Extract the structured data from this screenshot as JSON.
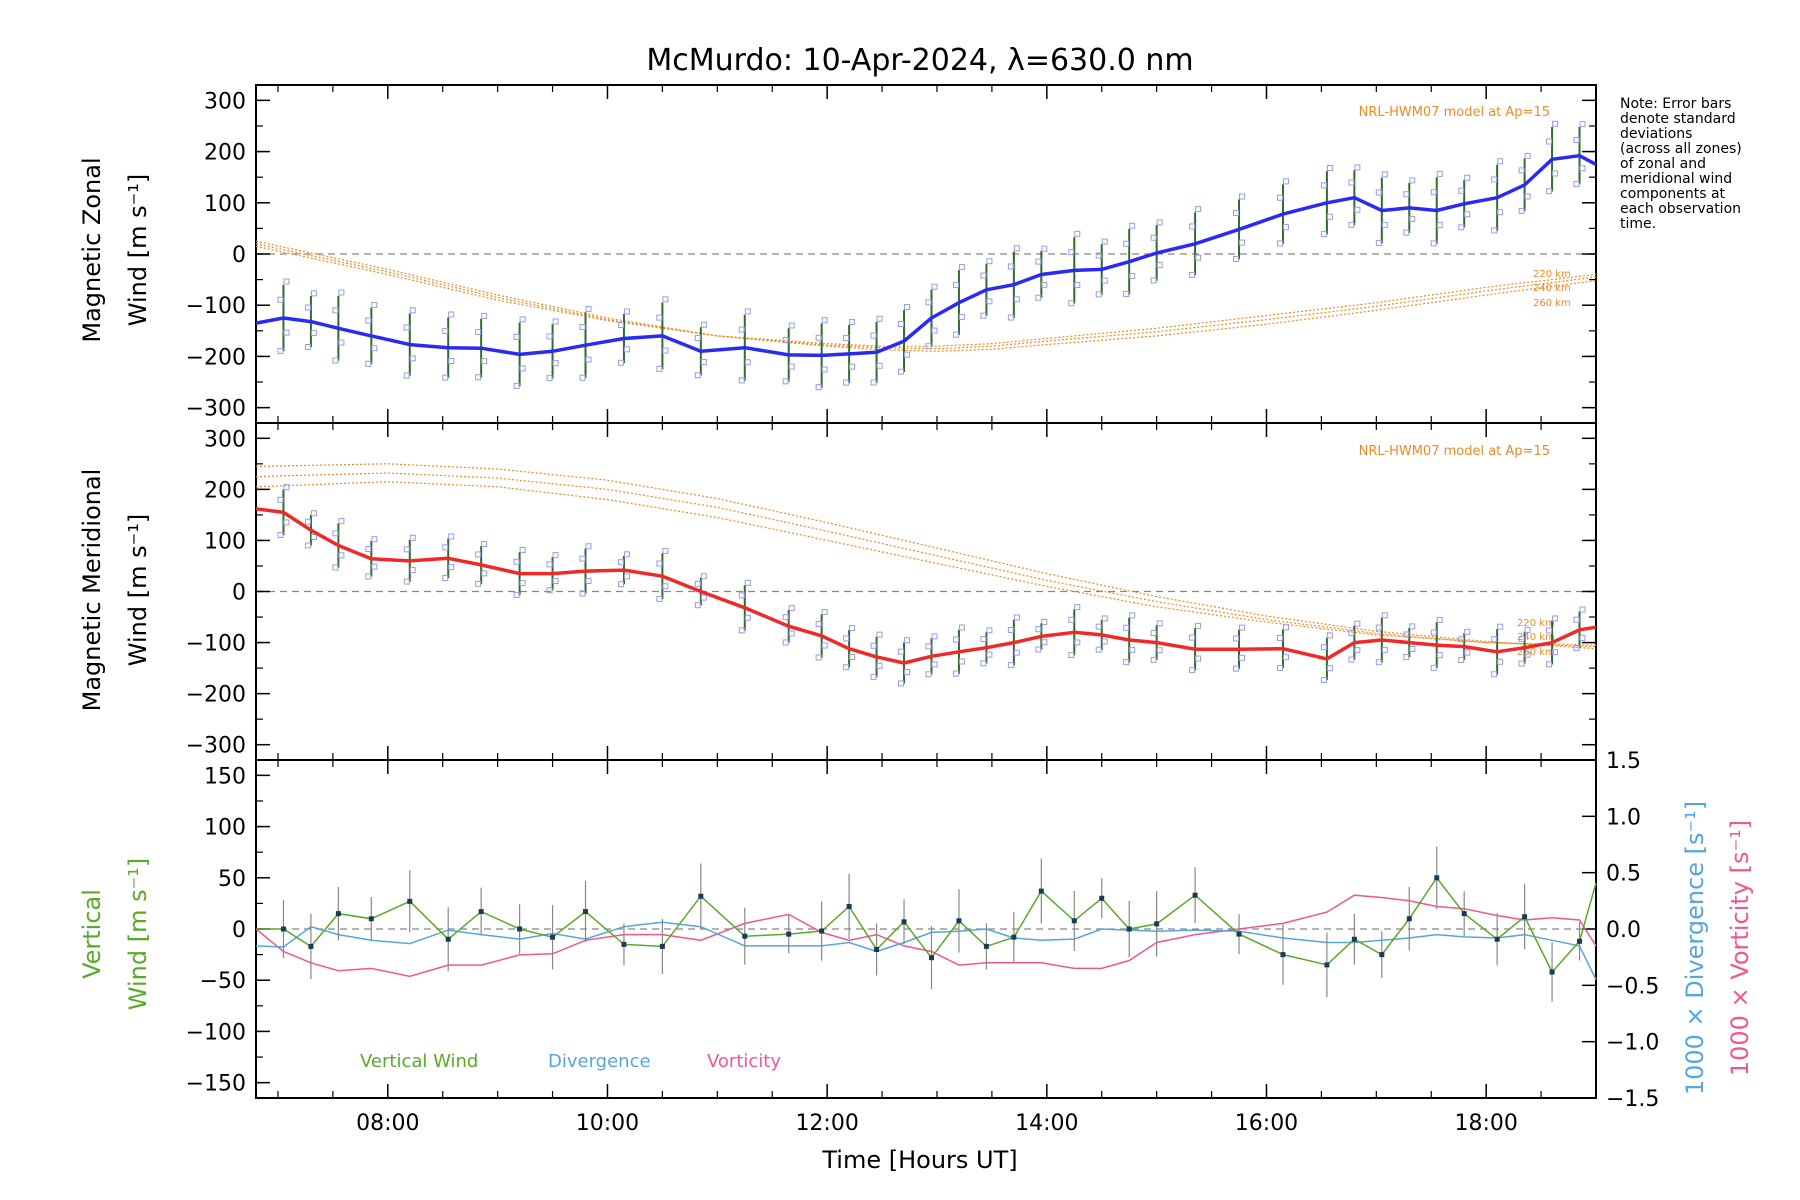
{
  "title": "McMurdo: 10-Apr-2024, λ=630.0 nm",
  "note_lines": [
    "Note: Error bars",
    "denote standard",
    "deviations",
    "(across all zones)",
    "of zonal and",
    "meridional wind",
    "components at",
    "each observation",
    "time."
  ],
  "colors": {
    "zonal": "#2a2af5",
    "meridional": "#f02828",
    "vertical": "#5aaa28",
    "divergence": "#55a6dc",
    "vorticity": "#f2578c",
    "model": "#ee8a26",
    "zone_points": "#9a9ae6"
  },
  "chart_data": [
    {
      "type": "line",
      "panel": "zonal",
      "ylabel_line1": "Magnetic Zonal",
      "ylabel_line2": "Wind [m s⁻¹]",
      "xlabel": "Time [Hours UT]",
      "x_ticks": [
        "08:00",
        "10:00",
        "12:00",
        "14:00",
        "16:00",
        "18:00"
      ],
      "y_ticks": [
        "300",
        "200",
        "100",
        "0",
        "−100",
        "−200",
        "−300"
      ],
      "xlim": [
        6.8,
        19.0
      ],
      "ylim": [
        -330,
        330
      ],
      "model_label": "NRL-HWM07 model at Ap=15",
      "altitude_labels": [
        "220 km",
        "240 km",
        "260 km"
      ],
      "series": [
        {
          "x": [
            6.8,
            7.05,
            7.3,
            7.55,
            7.85,
            8.2,
            8.55,
            8.85,
            9.2,
            9.5,
            9.8,
            10.15,
            10.5,
            10.85,
            11.25,
            11.65,
            11.95,
            12.2,
            12.45,
            12.7,
            12.95,
            13.2,
            13.45,
            13.7,
            13.95,
            14.25,
            14.5,
            14.75,
            15.0,
            15.35,
            15.75,
            16.15,
            16.55,
            16.8,
            17.05,
            17.3,
            17.55,
            17.8,
            18.1,
            18.35,
            18.6,
            18.85,
            19.0
          ],
          "y": [
            -135,
            -125,
            -132,
            -145,
            -160,
            -177,
            -183,
            -184,
            -196,
            -190,
            -178,
            -165,
            -160,
            -190,
            -183,
            -197,
            -198,
            -195,
            -192,
            -170,
            -125,
            -95,
            -70,
            -60,
            -40,
            -32,
            -30,
            -15,
            2,
            20,
            48,
            78,
            100,
            110,
            85,
            90,
            85,
            98,
            110,
            135,
            185,
            192,
            175
          ]
        }
      ],
      "model_series": [
        {
          "name": "220 km",
          "x": [
            6.8,
            8,
            9,
            10,
            11,
            12,
            12.5,
            13,
            13.5,
            14,
            15,
            16,
            17,
            18,
            19
          ],
          "y": [
            15,
            -40,
            -90,
            -130,
            -160,
            -175,
            -180,
            -180,
            -175,
            -165,
            -145,
            -120,
            -95,
            -65,
            -40
          ]
        },
        {
          "name": "240 km",
          "x": [
            6.8,
            8,
            9,
            10,
            11,
            12,
            12.5,
            13,
            13.5,
            14,
            15,
            16,
            17,
            18,
            19
          ],
          "y": [
            20,
            -35,
            -85,
            -128,
            -160,
            -178,
            -183,
            -185,
            -180,
            -170,
            -152,
            -128,
            -102,
            -72,
            -45
          ]
        },
        {
          "name": "260 km",
          "x": [
            6.8,
            8,
            9,
            10,
            11,
            12,
            12.5,
            13,
            13.5,
            14,
            15,
            16,
            17,
            18,
            19
          ],
          "y": [
            25,
            -30,
            -80,
            -125,
            -160,
            -180,
            -187,
            -190,
            -186,
            -177,
            -160,
            -137,
            -110,
            -80,
            -52
          ]
        }
      ]
    },
    {
      "type": "line",
      "panel": "meridional",
      "ylabel_line1": "Magnetic Meridional",
      "ylabel_line2": "Wind [m s⁻¹]",
      "y_ticks": [
        "300",
        "200",
        "100",
        "0",
        "−100",
        "−200",
        "−300"
      ],
      "xlim": [
        6.8,
        19.0
      ],
      "ylim": [
        -330,
        330
      ],
      "model_label": "NRL-HWM07 model at Ap=15",
      "altitude_labels": [
        "220 km",
        "240 km",
        "260 km"
      ],
      "series": [
        {
          "x": [
            6.8,
            7.05,
            7.3,
            7.55,
            7.85,
            8.2,
            8.55,
            8.85,
            9.2,
            9.5,
            9.8,
            10.15,
            10.5,
            10.85,
            11.25,
            11.65,
            11.95,
            12.2,
            12.45,
            12.7,
            12.95,
            13.2,
            13.45,
            13.7,
            13.95,
            14.25,
            14.5,
            14.75,
            15.0,
            15.35,
            15.75,
            16.15,
            16.55,
            16.8,
            17.05,
            17.3,
            17.55,
            17.8,
            18.1,
            18.35,
            18.6,
            18.85,
            19.0
          ],
          "y": [
            162,
            155,
            120,
            90,
            64,
            60,
            65,
            52,
            35,
            35,
            40,
            42,
            30,
            0,
            -32,
            -68,
            -87,
            -112,
            -128,
            -140,
            -127,
            -118,
            -110,
            -100,
            -88,
            -80,
            -85,
            -95,
            -100,
            -113,
            -113,
            -112,
            -132,
            -100,
            -95,
            -100,
            -105,
            -108,
            -118,
            -110,
            -100,
            -75,
            -70
          ]
        }
      ],
      "model_series": [
        {
          "name": "220 km",
          "x": [
            6.8,
            8,
            9,
            10,
            11,
            12,
            13,
            14,
            15,
            16,
            17,
            18,
            19
          ],
          "y": [
            205,
            215,
            205,
            180,
            145,
            100,
            55,
            10,
            -30,
            -60,
            -85,
            -100,
            -105
          ]
        },
        {
          "name": "240 km",
          "x": [
            6.8,
            8,
            9,
            10,
            11,
            12,
            13,
            14,
            15,
            16,
            17,
            18,
            19
          ],
          "y": [
            225,
            232,
            222,
            200,
            165,
            118,
            70,
            22,
            -20,
            -55,
            -82,
            -100,
            -108
          ]
        },
        {
          "name": "260 km",
          "x": [
            6.8,
            8,
            9,
            10,
            11,
            12,
            13,
            14,
            15,
            16,
            17,
            18,
            19
          ],
          "y": [
            245,
            250,
            240,
            218,
            182,
            135,
            85,
            35,
            -10,
            -48,
            -78,
            -98,
            -112
          ]
        }
      ]
    },
    {
      "type": "line",
      "panel": "vertical",
      "ylabel_line1": "Vertical",
      "ylabel_line2": "Wind [m s⁻¹]",
      "y2label_div": "1000 × Divergence [s⁻¹]",
      "y2label_vor": "1000 × Vorticity [s⁻¹]",
      "y_ticks": [
        "150",
        "100",
        "50",
        "0",
        "−50",
        "−100",
        "−150"
      ],
      "y2_ticks": [
        "1.5",
        "1.0",
        "0.5",
        "0.0",
        "−0.5",
        "−1.0",
        "−1.5"
      ],
      "xlim": [
        6.8,
        19.0
      ],
      "ylim": [
        -165,
        165
      ],
      "y2lim": [
        -1.5,
        1.5
      ],
      "legend": [
        "Vertical Wind",
        "Divergence",
        "Vorticity"
      ],
      "series": [
        {
          "name": "Vertical Wind",
          "x": [
            6.8,
            7.05,
            7.3,
            7.55,
            7.85,
            8.2,
            8.55,
            8.85,
            9.2,
            9.5,
            9.8,
            10.15,
            10.5,
            10.85,
            11.25,
            11.65,
            11.95,
            12.2,
            12.45,
            12.7,
            12.95,
            13.2,
            13.45,
            13.7,
            13.95,
            14.25,
            14.5,
            14.75,
            15.0,
            15.35,
            15.75,
            16.15,
            16.55,
            16.8,
            17.05,
            17.3,
            17.55,
            17.8,
            18.1,
            18.35,
            18.6,
            18.85,
            19.0
          ],
          "y": [
            0,
            0,
            -17,
            15,
            10,
            27,
            -10,
            17,
            0,
            -8,
            17,
            -15,
            -17,
            32,
            -7,
            -5,
            -2,
            22,
            -20,
            7,
            -28,
            8,
            -17,
            -8,
            37,
            8,
            30,
            0,
            5,
            33,
            -5,
            -25,
            -35,
            -10,
            -25,
            10,
            50,
            15,
            -10,
            12,
            -42,
            -12,
            45
          ]
        },
        {
          "name": "Divergence",
          "x": [
            6.8,
            7.05,
            7.3,
            7.55,
            7.85,
            8.2,
            8.55,
            8.85,
            9.2,
            9.5,
            9.8,
            10.15,
            10.5,
            10.85,
            11.25,
            11.65,
            11.95,
            12.2,
            12.45,
            12.7,
            12.95,
            13.2,
            13.45,
            13.7,
            13.95,
            14.25,
            14.5,
            14.75,
            15.0,
            15.35,
            15.75,
            16.15,
            16.55,
            16.8,
            17.05,
            17.3,
            17.55,
            17.8,
            18.1,
            18.35,
            18.6,
            18.85,
            19.0
          ],
          "y": [
            -0.15,
            -0.16,
            0.02,
            -0.05,
            -0.1,
            -0.13,
            -0.01,
            -0.05,
            -0.09,
            -0.04,
            -0.09,
            0.02,
            0.06,
            0.02,
            -0.15,
            -0.15,
            -0.15,
            -0.12,
            -0.2,
            -0.12,
            -0.03,
            -0.02,
            0.0,
            -0.08,
            -0.1,
            -0.09,
            0.0,
            -0.01,
            -0.02,
            -0.01,
            -0.02,
            -0.08,
            -0.12,
            -0.12,
            -0.1,
            -0.08,
            -0.05,
            -0.07,
            -0.08,
            -0.05,
            -0.1,
            -0.15,
            -0.45
          ]
        },
        {
          "name": "Vorticity",
          "x": [
            6.8,
            7.05,
            7.3,
            7.55,
            7.85,
            8.2,
            8.55,
            8.85,
            9.2,
            9.5,
            9.8,
            10.15,
            10.5,
            10.85,
            11.25,
            11.65,
            11.95,
            12.2,
            12.45,
            12.7,
            12.95,
            13.2,
            13.45,
            13.7,
            13.95,
            14.25,
            14.5,
            14.75,
            15.0,
            15.35,
            15.75,
            16.15,
            16.55,
            16.8,
            17.05,
            17.3,
            17.55,
            17.8,
            18.1,
            18.35,
            18.6,
            18.85,
            19.0
          ],
          "y": [
            0.0,
            -0.2,
            -0.3,
            -0.37,
            -0.35,
            -0.42,
            -0.32,
            -0.32,
            -0.23,
            -0.22,
            -0.1,
            -0.05,
            -0.05,
            -0.1,
            0.05,
            0.13,
            -0.03,
            -0.1,
            -0.05,
            -0.15,
            -0.2,
            -0.32,
            -0.3,
            -0.3,
            -0.3,
            -0.35,
            -0.35,
            -0.28,
            -0.12,
            -0.05,
            0.0,
            0.05,
            0.15,
            0.3,
            0.28,
            0.25,
            0.2,
            0.18,
            0.12,
            0.08,
            0.1,
            0.08,
            -0.15
          ]
        }
      ]
    }
  ]
}
